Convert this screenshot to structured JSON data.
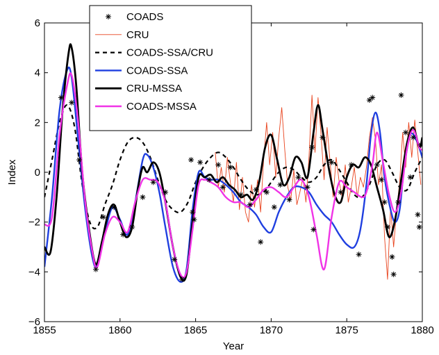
{
  "chart_data": {
    "type": "line",
    "title": "",
    "xlabel": "Year",
    "ylabel": "Index",
    "xlim": [
      1855,
      1880
    ],
    "ylim": [
      -6,
      6
    ],
    "x_ticks": [
      1855,
      1860,
      1865,
      1870,
      1875,
      1880
    ],
    "y_ticks": [
      -6,
      -4,
      -2,
      0,
      2,
      4,
      6
    ],
    "grid": false,
    "legend_position": "top-left",
    "series": [
      {
        "name": "COADS",
        "style": "marker-asterisk",
        "color": "#000000",
        "points": [
          [
            1856.1,
            3.0
          ],
          [
            1856.8,
            2.8
          ],
          [
            1857.3,
            0.5
          ],
          [
            1858.4,
            -3.9
          ],
          [
            1858.9,
            -1.8
          ],
          [
            1859.6,
            -1.4
          ],
          [
            1860.2,
            -2.5
          ],
          [
            1860.8,
            -2.2
          ],
          [
            1861.5,
            -1.0
          ],
          [
            1862.2,
            -0.4
          ],
          [
            1863.0,
            -0.8
          ],
          [
            1863.6,
            -3.5
          ],
          [
            1864.1,
            -4.3
          ],
          [
            1864.7,
            0.5
          ],
          [
            1864.8,
            -1.6
          ],
          [
            1864.9,
            -1.9
          ],
          [
            1865.3,
            0.4
          ],
          [
            1865.9,
            -0.3
          ],
          [
            1866.5,
            0.3
          ],
          [
            1866.8,
            -0.6
          ],
          [
            1867.3,
            0.2
          ],
          [
            1868.0,
            -0.9
          ],
          [
            1868.6,
            -1.3
          ],
          [
            1869.0,
            -0.7
          ],
          [
            1869.3,
            -2.8
          ],
          [
            1869.7,
            -0.8
          ],
          [
            1870.2,
            -1.4
          ],
          [
            1870.6,
            -0.5
          ],
          [
            1871.2,
            -1.1
          ],
          [
            1871.8,
            -0.2
          ],
          [
            1872.4,
            -0.6
          ],
          [
            1872.7,
            1.0
          ],
          [
            1872.8,
            -2.3
          ],
          [
            1873.4,
            1.4
          ],
          [
            1874.0,
            0.4
          ],
          [
            1874.6,
            -0.8
          ],
          [
            1875.3,
            0.3
          ],
          [
            1875.8,
            -3.3
          ],
          [
            1876.5,
            2.9
          ],
          [
            1876.7,
            3.0
          ],
          [
            1877.0,
            0.3
          ],
          [
            1877.3,
            -0.3
          ],
          [
            1877.5,
            -1.2
          ],
          [
            1877.7,
            -2.2
          ],
          [
            1878.0,
            -3.4
          ],
          [
            1878.1,
            -4.1
          ],
          [
            1878.4,
            -1.2
          ],
          [
            1878.6,
            3.1
          ],
          [
            1878.9,
            1.6
          ],
          [
            1879.2,
            -0.2
          ],
          [
            1879.4,
            1.4
          ],
          [
            1879.7,
            -1.7
          ],
          [
            1879.8,
            -2.2
          ],
          [
            1879.9,
            1.1
          ]
        ]
      },
      {
        "name": "CRU",
        "style": "thin-solid",
        "color": "#e8421c",
        "x": [
          1866.3,
          1866.5,
          1866.7,
          1866.9,
          1867.1,
          1867.3,
          1867.5,
          1867.7,
          1867.9,
          1868.1,
          1868.3,
          1868.5,
          1868.7,
          1868.9,
          1869.1,
          1869.3,
          1869.5,
          1869.7,
          1869.9,
          1870.1,
          1870.3,
          1870.5,
          1870.7,
          1870.9,
          1871.1,
          1871.3,
          1871.5,
          1871.7,
          1871.9,
          1872.1,
          1872.3,
          1872.5,
          1872.7,
          1872.9,
          1873.1,
          1873.3,
          1873.5,
          1873.7,
          1873.9,
          1874.1,
          1874.3,
          1874.5,
          1874.7,
          1874.9,
          1875.1,
          1875.3,
          1875.5,
          1875.7,
          1875.9,
          1876.1,
          1876.3,
          1876.5,
          1876.7,
          1876.9,
          1877.1,
          1877.3,
          1877.5,
          1877.7,
          1877.9,
          1878.1,
          1878.3,
          1878.5,
          1878.7,
          1878.9,
          1879.1,
          1879.3,
          1879.5,
          1879.7,
          1879.9
        ],
        "values": [
          0.8,
          -0.6,
          0.2,
          -0.8,
          0.6,
          -0.4,
          -1.2,
          0.4,
          -1.5,
          -0.2,
          -1.6,
          -2.0,
          -0.5,
          -1.4,
          -0.3,
          -1.6,
          0.5,
          2.0,
          0.3,
          1.6,
          -0.2,
          1.4,
          2.6,
          0.9,
          -0.6,
          -1.1,
          0.1,
          -1.3,
          -0.8,
          -0.2,
          -1.2,
          0.6,
          3.1,
          0.8,
          3.0,
          1.5,
          -0.3,
          1.8,
          0.4,
          -1.0,
          0.6,
          -0.4,
          -1.0,
          0.3,
          -1.2,
          -0.6,
          0.2,
          -1.0,
          -0.2,
          -0.6,
          0.2,
          1.4,
          2.2,
          1.3,
          -0.5,
          0.3,
          -2.6,
          -4.3,
          -1.4,
          -3.0,
          -1.5,
          -0.4,
          1.6,
          0.2,
          2.0,
          0.6,
          2.1,
          0.8,
          -0.5
        ]
      },
      {
        "name": "COADS-SSA/CRU",
        "style": "dashed",
        "color": "#000000",
        "x": [
          1855,
          1855.5,
          1856,
          1856.5,
          1857,
          1857.5,
          1858,
          1858.5,
          1859,
          1859.5,
          1860,
          1860.5,
          1861,
          1861.5,
          1862,
          1862.5,
          1863,
          1863.5,
          1864,
          1864.5,
          1865,
          1865.5,
          1866,
          1866.5,
          1867,
          1867.5,
          1868,
          1868.5,
          1869,
          1869.5,
          1870,
          1870.5,
          1871,
          1871.5,
          1872,
          1872.5,
          1873,
          1873.5,
          1874,
          1874.5,
          1875,
          1875.5,
          1876,
          1876.5,
          1877,
          1877.5,
          1878,
          1878.5,
          1879,
          1879.5,
          1880
        ],
        "values": [
          -1.0,
          0.5,
          2.0,
          2.7,
          1.8,
          -0.5,
          -2.0,
          -2.2,
          -1.3,
          -0.5,
          0.5,
          1.2,
          1.4,
          1.2,
          0.6,
          -0.3,
          -1.1,
          -1.5,
          -1.6,
          -1.2,
          -0.4,
          0.2,
          0.6,
          0.8,
          0.6,
          0.2,
          -0.3,
          -0.7,
          -0.9,
          -0.8,
          -0.4,
          0.0,
          0.2,
          0.1,
          -0.2,
          -0.4,
          -0.2,
          0.3,
          0.5,
          0.1,
          -0.4,
          -0.9,
          -1.0,
          -0.5,
          0.3,
          0.5,
          0.0,
          -0.6,
          -0.7,
          0.0,
          0.6
        ]
      },
      {
        "name": "COADS-SSA",
        "style": "solid",
        "color": "#1f3fe0",
        "x": [
          1855,
          1855.5,
          1856,
          1856.5,
          1856.8,
          1857.2,
          1857.7,
          1858.2,
          1858.5,
          1859,
          1859.5,
          1860,
          1860.5,
          1861,
          1861.5,
          1861.8,
          1862.2,
          1862.6,
          1863,
          1863.5,
          1864,
          1864.4,
          1864.8,
          1865.2,
          1865.6,
          1866,
          1866.5,
          1867,
          1867.5,
          1868,
          1868.5,
          1869,
          1869.5,
          1870,
          1870.5,
          1871,
          1871.5,
          1872,
          1872.5,
          1873,
          1873.5,
          1874,
          1874.5,
          1875,
          1875.5,
          1875.9,
          1876.3,
          1876.6,
          1876.9,
          1877.2,
          1877.5,
          1877.9,
          1878.2,
          1878.5,
          1878.8,
          1879.2,
          1879.6,
          1880
        ],
        "values": [
          -3.8,
          -1.0,
          2.5,
          4.1,
          3.8,
          1.5,
          -1.5,
          -3.5,
          -3.7,
          -2.4,
          -1.4,
          -1.9,
          -2.5,
          -1.2,
          0.5,
          0.7,
          0.2,
          -0.8,
          -2.2,
          -3.8,
          -4.4,
          -3.9,
          -1.5,
          0.0,
          -0.2,
          -0.3,
          -0.3,
          -0.5,
          -0.8,
          -1.2,
          -1.4,
          -1.7,
          -2.2,
          -2.4,
          -1.6,
          -1.0,
          -0.6,
          -0.6,
          -0.8,
          -1.3,
          -1.7,
          -2.0,
          -2.5,
          -2.9,
          -3.0,
          -2.3,
          -0.5,
          1.5,
          2.4,
          1.6,
          -0.2,
          -1.5,
          -2.0,
          -1.5,
          0.2,
          1.5,
          1.3,
          0.6
        ]
      },
      {
        "name": "CRU-MSSA",
        "style": "thick-solid",
        "color": "#000000",
        "x": [
          1855,
          1855.4,
          1855.8,
          1856.2,
          1856.6,
          1856.8,
          1857.1,
          1857.5,
          1858,
          1858.4,
          1858.8,
          1859.2,
          1859.6,
          1860,
          1860.4,
          1860.8,
          1861.2,
          1861.5,
          1861.8,
          1862.2,
          1862.6,
          1863,
          1863.5,
          1864,
          1864.4,
          1864.8,
          1865.2,
          1865.6,
          1866,
          1866.4,
          1866.8,
          1867.2,
          1867.6,
          1868,
          1868.4,
          1868.8,
          1869.2,
          1869.6,
          1870,
          1870.4,
          1870.8,
          1871.2,
          1871.6,
          1872,
          1872.4,
          1872.8,
          1873.1,
          1873.4,
          1873.8,
          1874.2,
          1874.6,
          1875,
          1875.4,
          1875.8,
          1876.2,
          1876.6,
          1877,
          1877.4,
          1877.8,
          1878.2,
          1878.6,
          1879,
          1879.4,
          1879.8,
          1880
        ],
        "values": [
          -3.0,
          -3.2,
          -1.0,
          2.5,
          4.8,
          5.0,
          3.5,
          0.0,
          -2.5,
          -3.7,
          -2.8,
          -1.7,
          -1.3,
          -2.0,
          -2.6,
          -2.2,
          -0.6,
          0.2,
          0.0,
          0.4,
          0.0,
          -1.2,
          -3.0,
          -4.2,
          -4.1,
          -2.0,
          -0.2,
          -0.2,
          -0.1,
          -0.4,
          -0.2,
          -0.5,
          -0.7,
          -1.0,
          -0.9,
          -1.1,
          -0.4,
          1.0,
          1.5,
          0.5,
          -0.5,
          -0.2,
          0.6,
          0.4,
          -0.2,
          1.6,
          2.7,
          1.7,
          0.2,
          -0.9,
          -1.2,
          -0.2,
          0.3,
          0.2,
          0.6,
          0.3,
          -0.6,
          -1.5,
          -2.6,
          -1.9,
          -0.3,
          1.2,
          1.8,
          1.0,
          1.4
        ]
      },
      {
        "name": "COADS-MSSA",
        "style": "solid",
        "color": "#f033e6",
        "x": [
          1855,
          1855.5,
          1856,
          1856.5,
          1856.8,
          1857.2,
          1857.7,
          1858.2,
          1858.5,
          1859,
          1859.5,
          1860,
          1860.5,
          1861,
          1861.5,
          1862,
          1862.5,
          1863,
          1863.5,
          1864,
          1864.4,
          1864.8,
          1865.2,
          1865.6,
          1866,
          1866.5,
          1867,
          1867.5,
          1868,
          1868.5,
          1869,
          1869.5,
          1870,
          1870.5,
          1871,
          1871.5,
          1872,
          1872.5,
          1873,
          1873.5,
          1874,
          1874.5,
          1875,
          1875.5,
          1876,
          1876.3,
          1876.7,
          1877,
          1877.4,
          1877.8,
          1878.2,
          1878.6,
          1879,
          1879.4,
          1879.8,
          1880
        ],
        "values": [
          -2.1,
          -1.8,
          1.5,
          3.5,
          3.9,
          2.2,
          -1.2,
          -3.3,
          -3.8,
          -2.5,
          -1.8,
          -2.0,
          -2.4,
          -1.2,
          -0.3,
          -0.3,
          -0.4,
          -1.2,
          -3.0,
          -4.1,
          -4.0,
          -2.3,
          -0.5,
          -0.3,
          -0.4,
          -0.6,
          -1.0,
          -1.2,
          -1.2,
          -1.4,
          -1.1,
          -0.7,
          -0.6,
          -0.8,
          -1.0,
          -0.6,
          -0.3,
          -1.0,
          -2.5,
          -3.9,
          -1.8,
          -0.4,
          -0.6,
          -0.8,
          -1.0,
          -0.8,
          0.3,
          1.6,
          0.4,
          -0.9,
          -1.6,
          -0.8,
          1.0,
          1.7,
          1.0,
          0.9
        ]
      }
    ]
  }
}
